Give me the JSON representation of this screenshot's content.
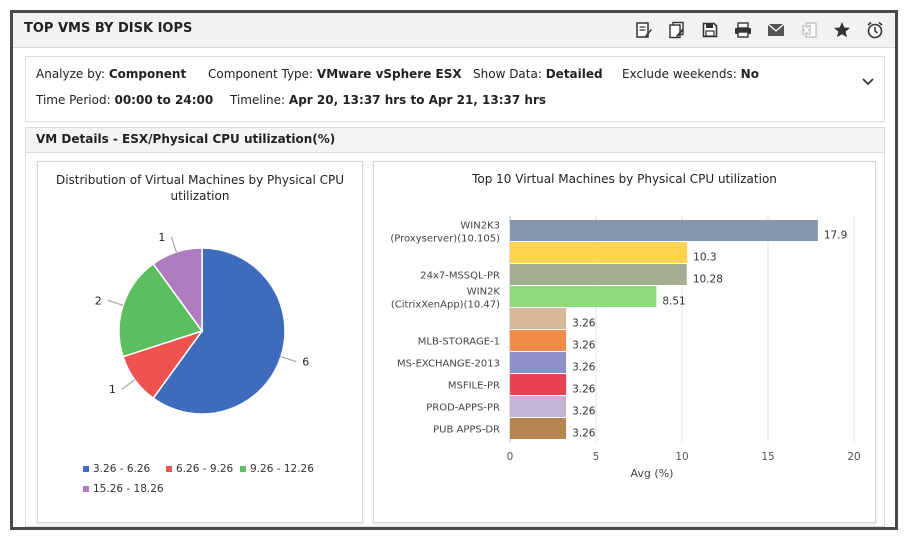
{
  "title": "TOP VMS BY DISK IOPS",
  "toolbar": [
    "edit-report-icon",
    "edit-report-alt-icon",
    "save-icon",
    "print-icon",
    "email-icon",
    "excel-export-icon",
    "favorite-star-icon",
    "schedule-alarm-icon"
  ],
  "filters": {
    "analyze_by_label": "Analyze by:",
    "analyze_by_value": "Component",
    "component_type_label": "Component Type:",
    "component_type_value": "VMware vSphere ESX",
    "show_data_label": "Show Data:",
    "show_data_value": "Detailed",
    "exclude_weekends_label": "Exclude weekends:",
    "exclude_weekends_value": "No",
    "time_period_label": "Time Period:",
    "time_period_value": "00:00 to 24:00",
    "timeline_label": "Timeline:",
    "timeline_value": "Apr 20, 13:37 hrs to Apr 21, 13:37 hrs"
  },
  "section_title": "VM Details - ESX/Physical CPU utilization(%)",
  "chart_data": [
    {
      "type": "pie",
      "title": "Distribution of Virtual Machines by Physical CPU utilization",
      "slices": [
        {
          "label": "3.26 - 6.26",
          "value": 6,
          "color": "#3f6bbd"
        },
        {
          "label": "6.26 - 9.26",
          "value": 1,
          "color": "#ef5350"
        },
        {
          "label": "9.26 - 12.26",
          "value": 2,
          "color": "#5cbf5f"
        },
        {
          "label": "15.26 - 18.26",
          "value": 1,
          "color": "#b07cc0"
        }
      ]
    },
    {
      "type": "bar",
      "orientation": "horizontal",
      "title": "Top 10 Virtual Machines by Physical CPU utilization",
      "xlabel": "Avg (%)",
      "xlim": [
        0,
        20
      ],
      "xticks": [
        0,
        5,
        10,
        15,
        20
      ],
      "grid": true,
      "bars": [
        {
          "label": [
            "WIN2K3",
            "(Proxyserver)(10.105)"
          ],
          "value": 17.9,
          "value_label": "17.9",
          "color": "#8597ae"
        },
        {
          "label": [],
          "value": 10.3,
          "value_label": "10.3",
          "color": "#ffd54f"
        },
        {
          "label": [
            "24x7-MSSQL-PR"
          ],
          "value": 10.28,
          "value_label": "10.28",
          "color": "#a5ae93"
        },
        {
          "label": [
            "WIN2K",
            "(CitrixXenApp)(10.47)"
          ],
          "value": 8.51,
          "value_label": "8.51",
          "color": "#8fda7b"
        },
        {
          "label": [],
          "value": 3.26,
          "value_label": "3.26",
          "color": "#d9b896"
        },
        {
          "label": [
            "MLB-STORAGE-1"
          ],
          "value": 3.26,
          "value_label": "3.26",
          "color": "#f28b4a"
        },
        {
          "label": [
            "MS-EXCHANGE-2013"
          ],
          "value": 3.26,
          "value_label": "3.26",
          "color": "#8f8fcc"
        },
        {
          "label": [
            "MSFILE-PR"
          ],
          "value": 3.26,
          "value_label": "3.26",
          "color": "#e8404f"
        },
        {
          "label": [
            "PROD-APPS-PR"
          ],
          "value": 3.26,
          "value_label": "3.26",
          "color": "#c4b5d6"
        },
        {
          "label": [
            "PUB APPS-DR"
          ],
          "value": 3.26,
          "value_label": "3.26",
          "color": "#b58650"
        }
      ]
    }
  ]
}
